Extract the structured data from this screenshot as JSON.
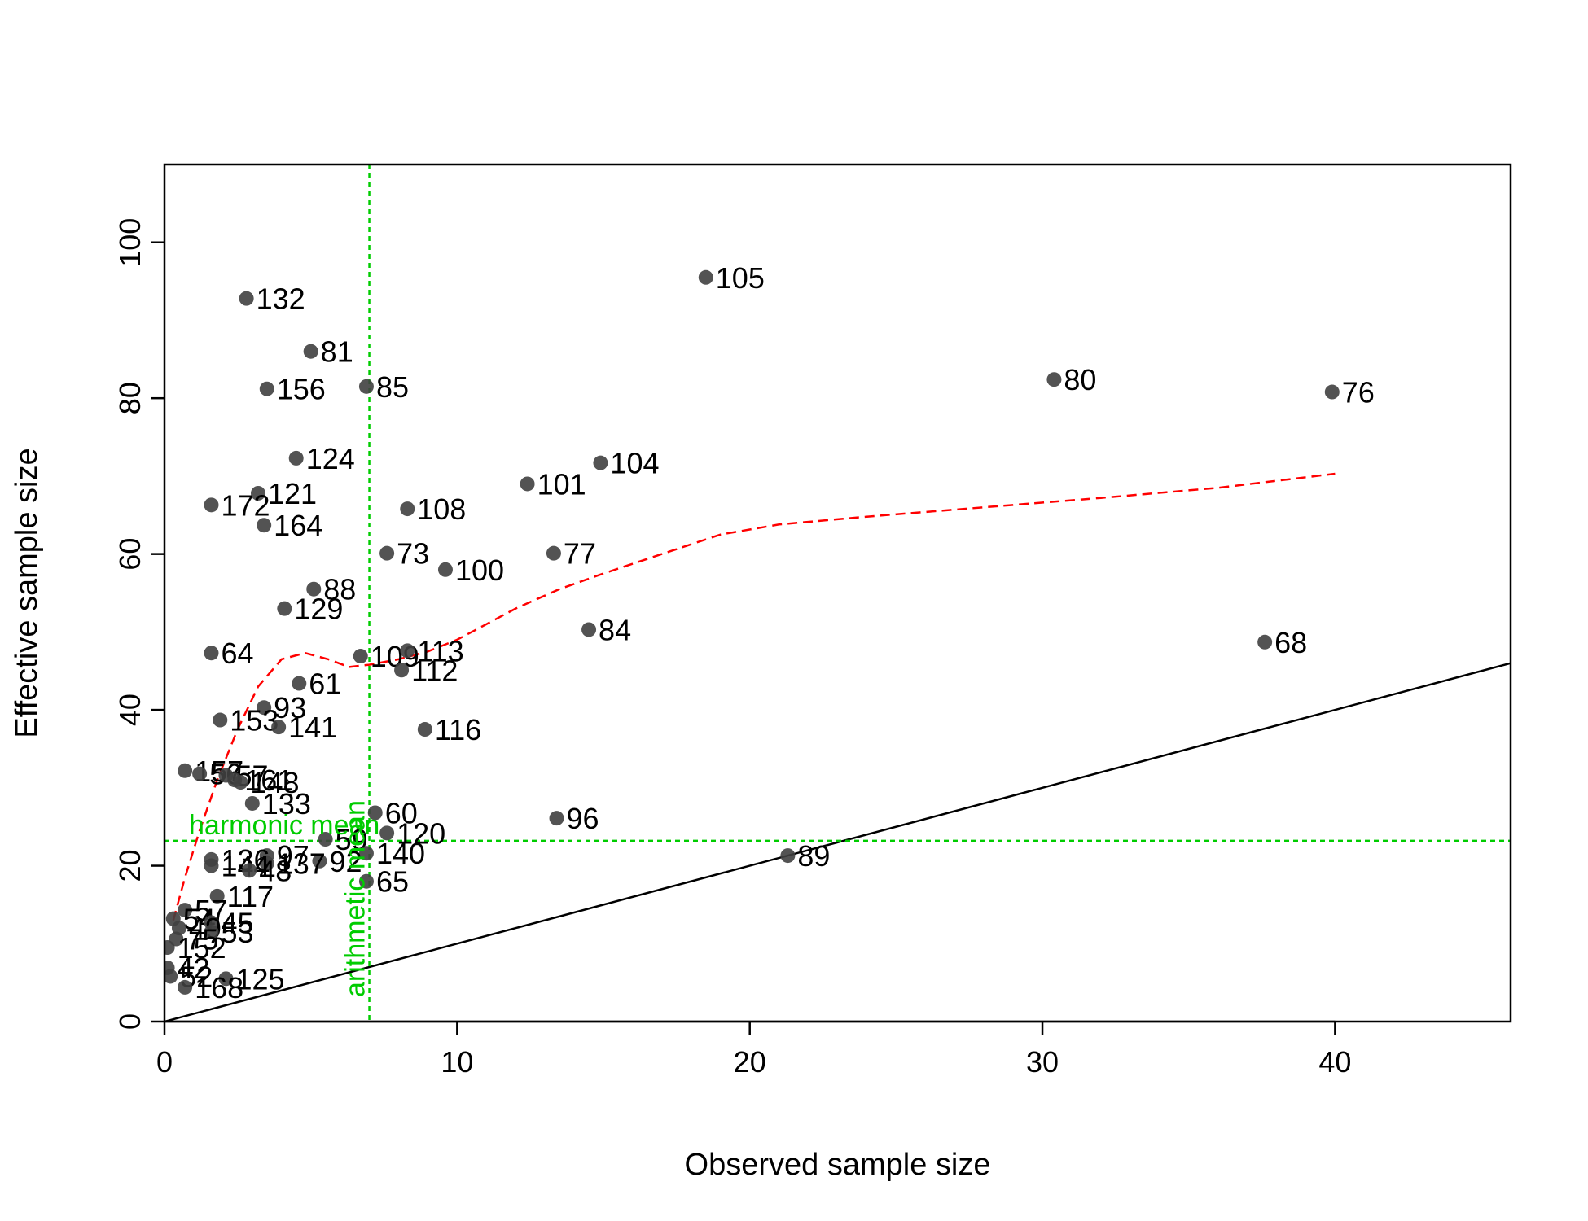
{
  "chart_data": {
    "type": "scatter",
    "title": "",
    "xlabel": "Observed sample size",
    "ylabel": "Effective sample size",
    "xlim": [
      0,
      46
    ],
    "ylim": [
      0,
      110
    ],
    "xticks": [
      0,
      10,
      20,
      30,
      40
    ],
    "yticks": [
      0,
      20,
      40,
      60,
      80,
      100
    ],
    "xtick_labels": [
      "0",
      "10",
      "20",
      "30",
      "40"
    ],
    "ytick_labels": [
      "0",
      "20",
      "40",
      "60",
      "80",
      "100"
    ],
    "grid": false,
    "colors": {
      "points": "#404040",
      "identity_line": "#000000",
      "smooth_line": "#ff0000",
      "reference_lines": "#00cc00"
    },
    "reference_lines": {
      "vertical": {
        "x": 7.0,
        "label": "arithmetic mean"
      },
      "horizontal": {
        "y": 23.2,
        "label": "harmonic mean"
      }
    },
    "identity_line": {
      "slope": 1,
      "intercept": 0
    },
    "smooth_line": {
      "x": [
        0.3,
        0.7,
        1.2,
        1.8,
        2.5,
        3.2,
        4.0,
        4.8,
        5.6,
        6.3,
        7.0,
        8.0,
        9.0,
        10.0,
        11.0,
        12.0,
        13.5,
        15.0,
        17.0,
        19.0,
        21.0,
        24.0,
        28.0,
        32.0,
        36.0,
        40.0
      ],
      "y": [
        13.0,
        18.5,
        24.5,
        31.0,
        37.5,
        43.0,
        46.5,
        47.3,
        46.5,
        45.5,
        45.8,
        46.5,
        47.5,
        49.0,
        51.0,
        53.0,
        55.5,
        57.5,
        60.0,
        62.5,
        63.8,
        64.8,
        66.0,
        67.2,
        68.5,
        70.3
      ]
    },
    "points": [
      {
        "label": "105",
        "x": 18.5,
        "y": 95.5
      },
      {
        "label": "132",
        "x": 2.8,
        "y": 92.8
      },
      {
        "label": "81",
        "x": 5.0,
        "y": 86.0
      },
      {
        "label": "156",
        "x": 3.5,
        "y": 81.2
      },
      {
        "label": "85",
        "x": 6.9,
        "y": 81.5
      },
      {
        "label": "80",
        "x": 30.4,
        "y": 82.4
      },
      {
        "label": "76",
        "x": 39.9,
        "y": 80.8
      },
      {
        "label": "124",
        "x": 4.5,
        "y": 72.3
      },
      {
        "label": "104",
        "x": 14.9,
        "y": 71.7
      },
      {
        "label": "121",
        "x": 3.2,
        "y": 67.8
      },
      {
        "label": "101",
        "x": 12.4,
        "y": 69.0
      },
      {
        "label": "172",
        "x": 1.6,
        "y": 66.3
      },
      {
        "label": "108",
        "x": 8.3,
        "y": 65.8
      },
      {
        "label": "164",
        "x": 3.4,
        "y": 63.7
      },
      {
        "label": "73",
        "x": 7.6,
        "y": 60.1
      },
      {
        "label": "77",
        "x": 13.3,
        "y": 60.1
      },
      {
        "label": "100",
        "x": 9.6,
        "y": 58.0
      },
      {
        "label": "88",
        "x": 5.1,
        "y": 55.5
      },
      {
        "label": "129",
        "x": 4.1,
        "y": 53.0
      },
      {
        "label": "84",
        "x": 14.5,
        "y": 50.3
      },
      {
        "label": "68",
        "x": 37.6,
        "y": 48.7
      },
      {
        "label": "64",
        "x": 1.6,
        "y": 47.3
      },
      {
        "label": "109",
        "x": 6.7,
        "y": 46.9
      },
      {
        "label": "113",
        "x": 8.3,
        "y": 47.6
      },
      {
        "label": "112",
        "x": 8.1,
        "y": 45.1
      },
      {
        "label": "61",
        "x": 4.6,
        "y": 43.4
      },
      {
        "label": "93",
        "x": 3.4,
        "y": 40.3
      },
      {
        "label": "153",
        "x": 1.9,
        "y": 38.7
      },
      {
        "label": "141",
        "x": 3.9,
        "y": 37.8
      },
      {
        "label": "116",
        "x": 8.9,
        "y": 37.5
      },
      {
        "label": "157",
        "x": 0.7,
        "y": 32.2
      },
      {
        "label": "56",
        "x": 1.2,
        "y": 31.8
      },
      {
        "label": "57",
        "x": 2.1,
        "y": 31.6
      },
      {
        "label": "161",
        "x": 2.4,
        "y": 31.0
      },
      {
        "label": "148",
        "x": 2.6,
        "y": 30.7
      },
      {
        "label": "133",
        "x": 3.0,
        "y": 28.0
      },
      {
        "label": "60",
        "x": 7.2,
        "y": 26.8
      },
      {
        "label": "96",
        "x": 13.4,
        "y": 26.1
      },
      {
        "label": "120",
        "x": 7.6,
        "y": 24.2
      },
      {
        "label": "59",
        "x": 5.5,
        "y": 23.4
      },
      {
        "label": "140",
        "x": 6.9,
        "y": 21.6
      },
      {
        "label": "89",
        "x": 21.3,
        "y": 21.3
      },
      {
        "label": "97",
        "x": 3.5,
        "y": 21.3
      },
      {
        "label": "136",
        "x": 1.6,
        "y": 20.8
      },
      {
        "label": "92",
        "x": 5.3,
        "y": 20.6
      },
      {
        "label": "137",
        "x": 3.5,
        "y": 20.3
      },
      {
        "label": "144",
        "x": 1.6,
        "y": 20.0
      },
      {
        "label": "48",
        "x": 2.9,
        "y": 19.4
      },
      {
        "label": "65",
        "x": 6.9,
        "y": 18.0
      },
      {
        "label": "117",
        "x": 1.8,
        "y": 16.1
      },
      {
        "label": "57",
        "x": 0.7,
        "y": 14.3
      },
      {
        "label": "54",
        "x": 0.3,
        "y": 13.2
      },
      {
        "label": "45",
        "x": 1.6,
        "y": 12.7
      },
      {
        "label": "49",
        "x": 0.5,
        "y": 12.0
      },
      {
        "label": "53",
        "x": 1.6,
        "y": 11.5
      },
      {
        "label": "75",
        "x": 0.4,
        "y": 10.6
      },
      {
        "label": "152",
        "x": 0.1,
        "y": 9.5
      },
      {
        "label": "42",
        "x": 0.1,
        "y": 6.9
      },
      {
        "label": "52",
        "x": 0.2,
        "y": 5.8
      },
      {
        "label": "125",
        "x": 2.1,
        "y": 5.5
      },
      {
        "label": "168",
        "x": 0.7,
        "y": 4.4
      }
    ]
  }
}
